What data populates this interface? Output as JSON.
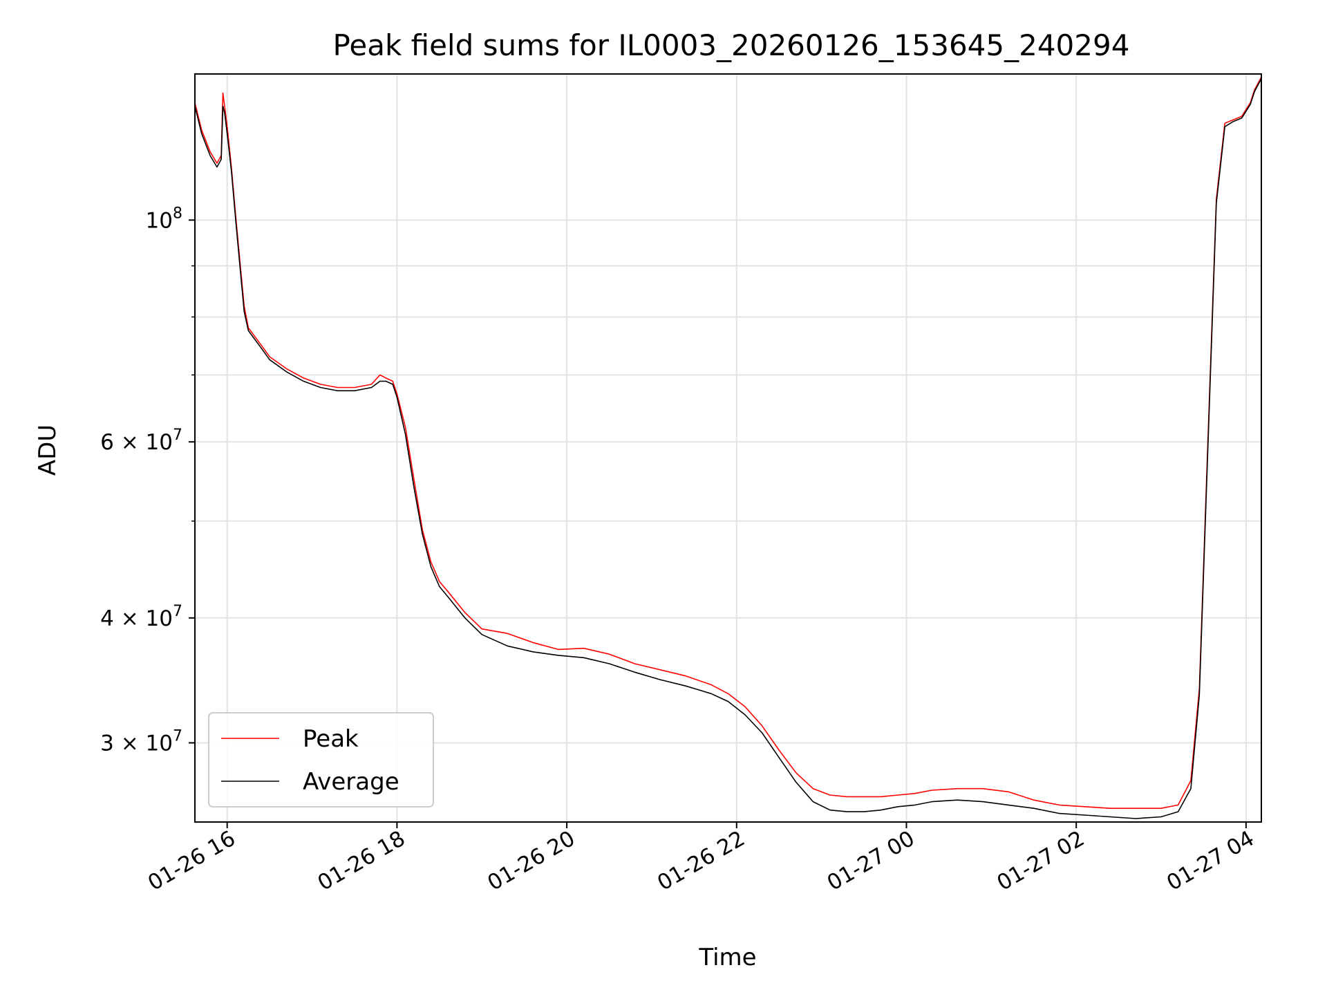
{
  "chart_data": {
    "type": "line",
    "title": "Peak field sums for IL0003_20260126_153645_240294",
    "xlabel": "Time",
    "ylabel": "ADU",
    "x_unit": "hours since 01-26 00:00",
    "xlim": [
      15.62,
      28.18
    ],
    "ylim": [
      25000000,
      140000000
    ],
    "yscale": "log",
    "grid": true,
    "legend_position": "lower-left",
    "x_ticks": [
      {
        "value": 16,
        "label": "01-26 16"
      },
      {
        "value": 18,
        "label": "01-26 18"
      },
      {
        "value": 20,
        "label": "01-26 20"
      },
      {
        "value": 22,
        "label": "01-26 22"
      },
      {
        "value": 24,
        "label": "01-27 00"
      },
      {
        "value": 26,
        "label": "01-27 02"
      },
      {
        "value": 28,
        "label": "01-27 04"
      }
    ],
    "y_ticks": [
      {
        "value": 100000000,
        "base": "10",
        "exp": "8"
      },
      {
        "value": 60000000,
        "base": "6 × 10",
        "exp": "7"
      },
      {
        "value": 40000000,
        "base": "4 × 10",
        "exp": "7"
      },
      {
        "value": 30000000,
        "base": "3 × 10",
        "exp": "7"
      }
    ],
    "y_minor_ticks": [
      50000000,
      70000000,
      80000000,
      90000000
    ],
    "series": [
      {
        "name": "Peak",
        "color": "#ff0000",
        "x": [
          15.62,
          15.7,
          15.8,
          15.88,
          15.93,
          15.95,
          15.97,
          16.0,
          16.05,
          16.1,
          16.15,
          16.2,
          16.25,
          16.3,
          16.4,
          16.5,
          16.7,
          16.9,
          17.1,
          17.3,
          17.5,
          17.7,
          17.8,
          17.87,
          17.95,
          18.0,
          18.1,
          18.2,
          18.3,
          18.4,
          18.5,
          18.6,
          18.8,
          19.0,
          19.3,
          19.6,
          19.9,
          20.2,
          20.5,
          20.8,
          21.1,
          21.4,
          21.7,
          21.9,
          22.1,
          22.3,
          22.5,
          22.7,
          22.9,
          23.1,
          23.3,
          23.5,
          23.7,
          23.9,
          24.1,
          24.3,
          24.6,
          24.9,
          25.2,
          25.5,
          25.8,
          26.1,
          26.4,
          26.7,
          27.0,
          27.2,
          27.35,
          27.45,
          27.55,
          27.65,
          27.75,
          27.85,
          27.95,
          28.05,
          28.1,
          28.18
        ],
        "values": [
          131000000,
          123000000,
          117000000,
          114000000,
          116000000,
          134000000,
          130000000,
          124000000,
          113000000,
          101000000,
          91000000,
          82000000,
          78000000,
          77000000,
          75000000,
          73000000,
          71000000,
          69500000,
          68500000,
          68000000,
          68000000,
          68500000,
          70000000,
          69500000,
          69000000,
          67000000,
          62000000,
          55000000,
          49000000,
          45500000,
          43500000,
          42500000,
          40500000,
          39000000,
          38600000,
          37800000,
          37200000,
          37300000,
          36800000,
          36000000,
          35500000,
          35000000,
          34300000,
          33600000,
          32600000,
          31200000,
          29500000,
          28000000,
          27000000,
          26600000,
          26500000,
          26500000,
          26500000,
          26600000,
          26700000,
          26900000,
          27000000,
          27000000,
          26800000,
          26300000,
          26000000,
          25900000,
          25800000,
          25800000,
          25800000,
          26000000,
          27500000,
          34000000,
          60000000,
          105000000,
          125000000,
          126000000,
          127000000,
          131000000,
          135000000,
          139000000
        ]
      },
      {
        "name": "Average",
        "color": "#000000",
        "x": [
          15.62,
          15.7,
          15.8,
          15.88,
          15.93,
          15.95,
          15.97,
          16.0,
          16.05,
          16.1,
          16.15,
          16.2,
          16.25,
          16.3,
          16.4,
          16.5,
          16.7,
          16.9,
          17.1,
          17.3,
          17.5,
          17.7,
          17.8,
          17.87,
          17.95,
          18.0,
          18.1,
          18.2,
          18.3,
          18.4,
          18.5,
          18.6,
          18.8,
          19.0,
          19.3,
          19.6,
          19.9,
          20.2,
          20.5,
          20.8,
          21.1,
          21.4,
          21.7,
          21.9,
          22.1,
          22.3,
          22.5,
          22.7,
          22.9,
          23.1,
          23.3,
          23.5,
          23.7,
          23.9,
          24.1,
          24.3,
          24.6,
          24.9,
          25.2,
          25.5,
          25.8,
          26.1,
          26.4,
          26.7,
          27.0,
          27.2,
          27.35,
          27.45,
          27.55,
          27.65,
          27.75,
          27.85,
          27.95,
          28.05,
          28.1,
          28.18
        ],
        "values": [
          130000000,
          122000000,
          116000000,
          113000000,
          115000000,
          130000000,
          128000000,
          122000000,
          112000000,
          100000000,
          90000000,
          81000000,
          77500000,
          76500000,
          74500000,
          72500000,
          70500000,
          69000000,
          68000000,
          67500000,
          67500000,
          68000000,
          69000000,
          69000000,
          68500000,
          66500000,
          61000000,
          54000000,
          48500000,
          45000000,
          43000000,
          42000000,
          40000000,
          38500000,
          37500000,
          37000000,
          36700000,
          36500000,
          36000000,
          35300000,
          34700000,
          34200000,
          33600000,
          33000000,
          32000000,
          30700000,
          29000000,
          27400000,
          26200000,
          25700000,
          25600000,
          25600000,
          25700000,
          25900000,
          26000000,
          26200000,
          26300000,
          26200000,
          26000000,
          25800000,
          25500000,
          25400000,
          25300000,
          25200000,
          25300000,
          25600000,
          27000000,
          33500000,
          59000000,
          104000000,
          124000000,
          125500000,
          126500000,
          130500000,
          134500000,
          138500000
        ]
      }
    ]
  }
}
